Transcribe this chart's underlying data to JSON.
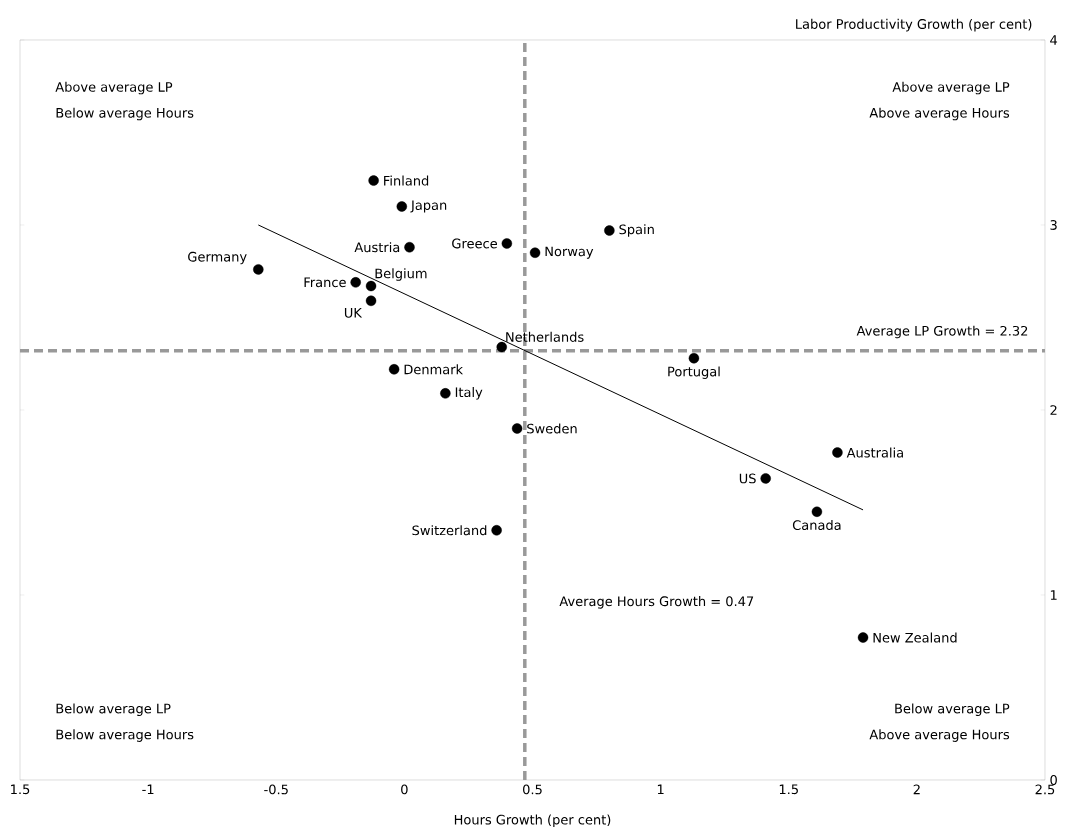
{
  "chart_data": {
    "type": "scatter",
    "xlabel": "Hours Growth (per cent)",
    "ylabel": "Labor Productivity Growth (per cent)",
    "xlim": [
      -1.5,
      2.5
    ],
    "ylim": [
      0,
      4
    ],
    "xticks": [
      {
        "value": -1.5,
        "label": "1.5"
      },
      -1,
      -0.5,
      0,
      0.5,
      1,
      1.5,
      2,
      2.5
    ],
    "yticks": [
      0,
      1,
      2,
      3,
      4
    ],
    "grid": false,
    "series": [
      {
        "name": "Finland",
        "marker": "circle",
        "color": "#000000",
        "x": [
          -0.12
        ],
        "values": [
          3.24
        ]
      },
      {
        "name": "Japan",
        "marker": "circle",
        "color": "#000000",
        "x": [
          -0.01
        ],
        "values": [
          3.1
        ]
      },
      {
        "name": "Austria",
        "marker": "circle",
        "color": "#000000",
        "x": [
          0.02
        ],
        "values": [
          2.88
        ]
      },
      {
        "name": "Greece",
        "marker": "circle",
        "color": "#000000",
        "x": [
          0.4
        ],
        "values": [
          2.9
        ]
      },
      {
        "name": "Norway",
        "marker": "circle",
        "color": "#000000",
        "x": [
          0.51
        ],
        "values": [
          2.85
        ]
      },
      {
        "name": "Spain",
        "marker": "circle",
        "color": "#000000",
        "x": [
          0.8
        ],
        "values": [
          2.97
        ]
      },
      {
        "name": "Germany",
        "marker": "circle",
        "color": "#000000",
        "x": [
          -0.57
        ],
        "values": [
          2.76
        ]
      },
      {
        "name": "France",
        "marker": "circle",
        "color": "#000000",
        "x": [
          -0.19
        ],
        "values": [
          2.69
        ]
      },
      {
        "name": "Belgium",
        "marker": "circle",
        "color": "#000000",
        "x": [
          -0.13
        ],
        "values": [
          2.67
        ]
      },
      {
        "name": "UK",
        "marker": "circle",
        "color": "#000000",
        "x": [
          -0.13
        ],
        "values": [
          2.59
        ]
      },
      {
        "name": "Netherlands",
        "marker": "circle",
        "color": "#000000",
        "x": [
          0.38
        ],
        "values": [
          2.34
        ]
      },
      {
        "name": "Portugal",
        "marker": "circle",
        "color": "#000000",
        "x": [
          1.13
        ],
        "values": [
          2.28
        ]
      },
      {
        "name": "Denmark",
        "marker": "circle",
        "color": "#000000",
        "x": [
          -0.04
        ],
        "values": [
          2.22
        ]
      },
      {
        "name": "Italy",
        "marker": "circle",
        "color": "#000000",
        "x": [
          0.16
        ],
        "values": [
          2.09
        ]
      },
      {
        "name": "Sweden",
        "marker": "circle",
        "color": "#000000",
        "x": [
          0.44
        ],
        "values": [
          1.9
        ]
      },
      {
        "name": "Australia",
        "marker": "circle",
        "color": "#000000",
        "x": [
          1.69
        ],
        "values": [
          1.77
        ]
      },
      {
        "name": "US",
        "marker": "circle",
        "color": "#000000",
        "x": [
          1.41
        ],
        "values": [
          1.63
        ]
      },
      {
        "name": "Canada",
        "marker": "circle",
        "color": "#000000",
        "x": [
          1.61
        ],
        "values": [
          1.45
        ]
      },
      {
        "name": "Switzerland",
        "marker": "circle",
        "color": "#000000",
        "x": [
          0.36
        ],
        "values": [
          1.35
        ]
      },
      {
        "name": "New Zealand",
        "marker": "circle",
        "color": "#000000",
        "x": [
          1.79
        ],
        "values": [
          0.77
        ]
      },
      {
        "type": "line",
        "marker": "none",
        "color": "#000000",
        "x": [
          -0.57,
          1.79
        ],
        "values": [
          3.0,
          1.46
        ]
      }
    ],
    "ref_lines": [
      {
        "axis": "y",
        "value": 2.32,
        "label": "Average LP Growth = 2.32",
        "color": "#999999",
        "line_style": "dashed"
      },
      {
        "axis": "x",
        "value": 0.47,
        "label": "Average Hours Growth = 0.47",
        "color": "#999999",
        "line_style": "dashed"
      }
    ],
    "annotations": [
      "Above average LP",
      "Below average Hours",
      "Above average LP",
      "Above average Hours",
      "Below average LP",
      "Below average Hours",
      "Below average LP",
      "Above average Hours"
    ]
  }
}
